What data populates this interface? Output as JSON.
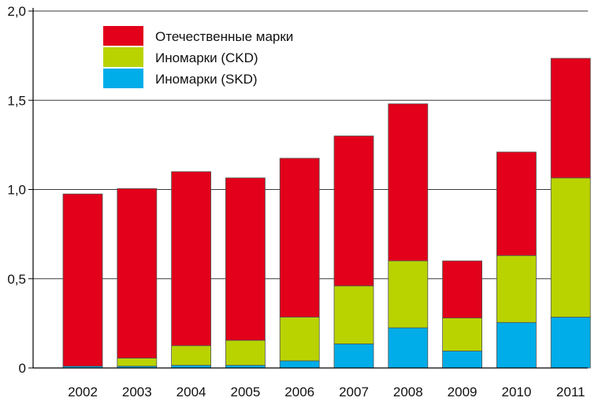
{
  "chart_data": {
    "type": "bar",
    "stacked": true,
    "categories": [
      "2002",
      "2003",
      "2004",
      "2005",
      "2006",
      "2007",
      "2008",
      "2009",
      "2010",
      "2011"
    ],
    "series": [
      {
        "name": "Иномарки (SKD)",
        "color": "#00ADE8",
        "values": [
          0.01,
          0.01,
          0.015,
          0.015,
          0.04,
          0.135,
          0.225,
          0.095,
          0.255,
          0.285
        ]
      },
      {
        "name": "Иномарки (CKD)",
        "color": "#B9D300",
        "values": [
          0.0,
          0.045,
          0.11,
          0.14,
          0.245,
          0.325,
          0.375,
          0.185,
          0.375,
          0.78
        ]
      },
      {
        "name": "Отечественные марки",
        "color": "#E2001A",
        "values": [
          0.965,
          0.95,
          0.975,
          0.91,
          0.89,
          0.84,
          0.88,
          0.32,
          0.58,
          0.67
        ]
      }
    ],
    "legend_order": [
      "Отечественные марки",
      "Иномарки (CKD)",
      "Иномарки (SKD)"
    ],
    "ylim": [
      0,
      2.0
    ],
    "yticks": [
      "0",
      "0,5",
      "1,0",
      "1,5",
      "2,0"
    ],
    "ytick_values": [
      0,
      0.5,
      1.0,
      1.5,
      2.0
    ],
    "grid": true,
    "legend_position": "top-left",
    "title": "",
    "xlabel": "",
    "ylabel": ""
  }
}
